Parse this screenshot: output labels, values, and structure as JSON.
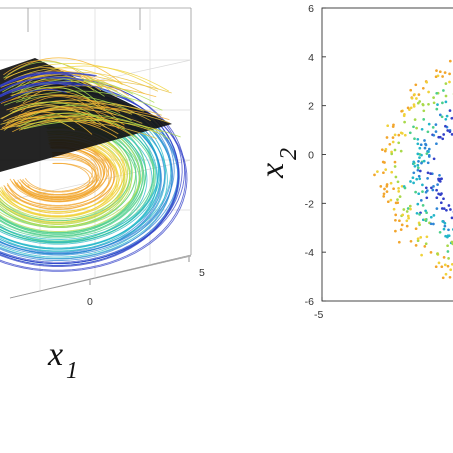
{
  "colors": {
    "bg": "#ffffff",
    "grid": "#d9d9d9",
    "box": "#9a9a9a",
    "plane": "#111111",
    "palette": [
      "#3340c8",
      "#2f86d6",
      "#22b5c8",
      "#4ccf8a",
      "#a8d94a",
      "#f0d23a",
      "#f2a52c"
    ]
  },
  "chart_data": [
    {
      "type": "line",
      "subtype": "3d-trajectories",
      "xlabel": "x",
      "xlabel_sub": "1",
      "x_ticks": [
        "0",
        "5"
      ],
      "x_range": [
        -5,
        5
      ],
      "grid": true,
      "surface": "black horizontal plane (Poincaré section)",
      "colormap": [
        "#3340c8",
        "#2f86d6",
        "#22b5c8",
        "#4ccf8a",
        "#a8d94a",
        "#f0d23a",
        "#f2a52c"
      ],
      "shape": "toroidal bundle of trajectories"
    },
    {
      "type": "scatter",
      "ylabel": "x",
      "ylabel_sub": "2",
      "y_ticks": [
        "6",
        "4",
        "2",
        "0",
        "-2",
        "-4",
        "-6"
      ],
      "ylim": [
        -6,
        6
      ],
      "x_ticks": [
        "-5"
      ],
      "x_range": [
        -5,
        5
      ],
      "grid": false,
      "colormap": [
        "#3340c8",
        "#2f86d6",
        "#22b5c8",
        "#4ccf8a",
        "#a8d94a",
        "#f0d23a",
        "#f2a52c"
      ],
      "shape": "crescent (C-shaped) cloud; inner edge blue, outer edge yellow",
      "crescent_model": {
        "center_x": 2.4,
        "center_y": -0.6,
        "radius_outer": 5.4,
        "radius_inner": 3.3,
        "n_points": 520
      }
    }
  ]
}
